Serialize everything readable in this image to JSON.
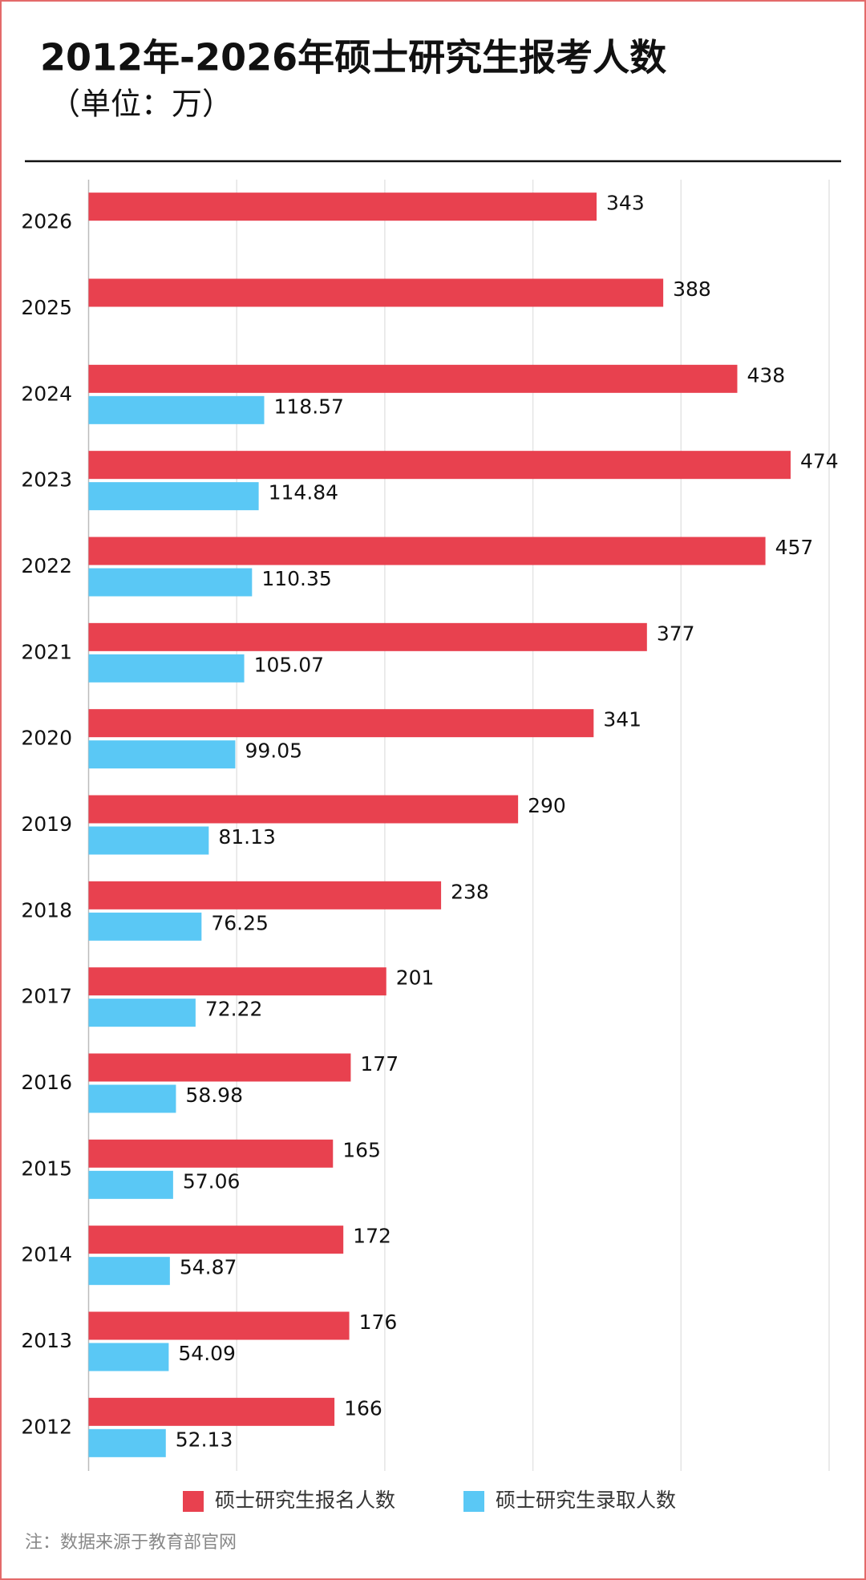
{
  "chart_data": {
    "type": "hbar",
    "title": "2012年-2026年硕士研究生报考人数",
    "subtitle": "（单位：万）",
    "categories": [
      "2026",
      "2025",
      "2024",
      "2023",
      "2022",
      "2021",
      "2020",
      "2019",
      "2018",
      "2017",
      "2016",
      "2015",
      "2014",
      "2013",
      "2012"
    ],
    "series": [
      {
        "name": "硕士研究生报名人数",
        "color": "#e8414f",
        "values": [
          343,
          388,
          438,
          474,
          457,
          377,
          341,
          290,
          238,
          201,
          177,
          165,
          172,
          176,
          166
        ]
      },
      {
        "name": "硕士研究生录取人数",
        "color": "#5ac8f5",
        "values": [
          null,
          null,
          118.57,
          114.84,
          110.35,
          105.07,
          99.05,
          81.13,
          76.25,
          72.22,
          58.98,
          57.06,
          54.87,
          54.09,
          52.13
        ]
      }
    ],
    "xlim": [
      0,
      500
    ],
    "xticks": [
      0,
      100,
      200,
      300,
      400,
      500
    ],
    "grid": true,
    "note": "注：数据来源于教育部官网"
  }
}
